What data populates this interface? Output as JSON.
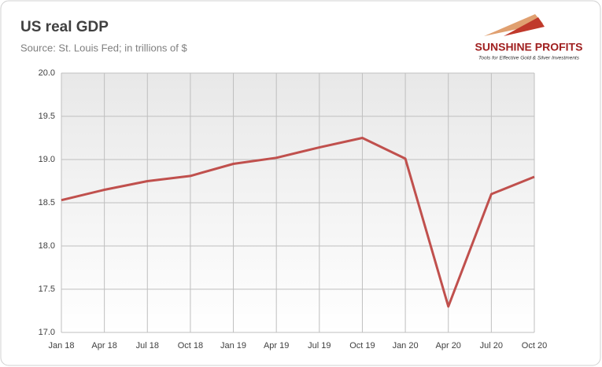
{
  "chart_data": {
    "type": "line",
    "title": "US real GDP",
    "subtitle": "Source: St. Louis Fed; in trillions of $",
    "categories": [
      "Jan 18",
      "Apr 18",
      "Jul 18",
      "Oct 18",
      "Jan 19",
      "Apr 19",
      "Jul 19",
      "Oct 19",
      "Jan 20",
      "Apr 20",
      "Jul 20",
      "Oct 20"
    ],
    "series": [
      {
        "name": "US real GDP",
        "color": "#c0504d",
        "values": [
          18.53,
          18.65,
          18.75,
          18.81,
          18.95,
          19.02,
          19.14,
          19.25,
          19.01,
          17.3,
          18.6,
          18.8
        ]
      }
    ],
    "ylim": [
      17.0,
      20.0
    ],
    "yticks": [
      {
        "value": 17.0,
        "label": "17.0"
      },
      {
        "value": 17.5,
        "label": "17.5"
      },
      {
        "value": 18.0,
        "label": "18.0"
      },
      {
        "value": 18.5,
        "label": "18.5"
      },
      {
        "value": 19.0,
        "label": "19.0"
      },
      {
        "value": 19.5,
        "label": "19.5"
      },
      {
        "value": 20.0,
        "label": "20.0"
      }
    ],
    "grid": true
  },
  "brand": {
    "name": "SUNSHINE PROFITS",
    "tagline": "Tools for Effective Gold & Silver Investments"
  }
}
